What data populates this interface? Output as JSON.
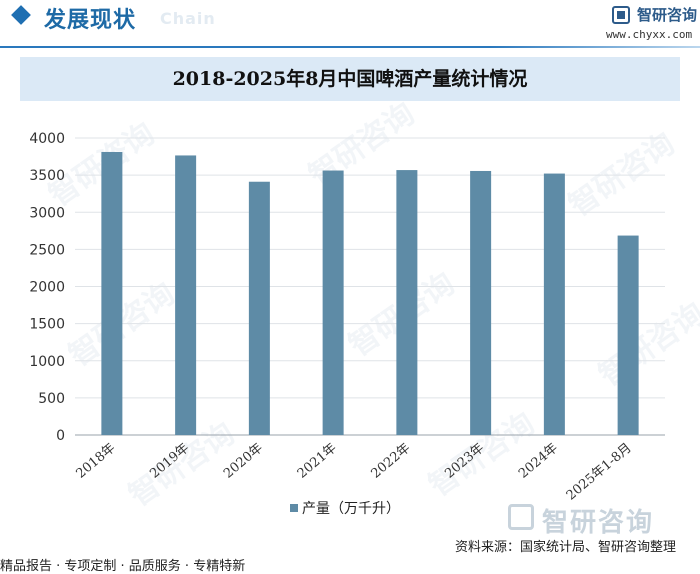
{
  "header": {
    "title": "发展现状",
    "subtitle": "Chain",
    "logo_name": "智研咨询",
    "logo_url": "www.chyxx.com"
  },
  "chart_data": {
    "type": "bar",
    "title": "2018-2025年8月中国啤酒产量统计情况",
    "categories": [
      "2018年",
      "2019年",
      "2020年",
      "2021年",
      "2022年",
      "2023年",
      "2024年",
      "2025年1-8月"
    ],
    "series": [
      {
        "name": "产量（万千升）",
        "values": [
          3812,
          3765,
          3411,
          3562,
          3568,
          3556,
          3521,
          2686
        ]
      }
    ],
    "ylim": [
      0,
      4000
    ],
    "yticks": [
      0,
      500,
      1000,
      1500,
      2000,
      2500,
      3000,
      3500,
      4000
    ],
    "xlabel": "",
    "ylabel": "",
    "grid": true,
    "legend": "bottom-center",
    "bar_color": "#5e8ba6"
  },
  "watermark": "智研咨询",
  "source": "资料来源：国家统计局、智研咨询整理",
  "footer": "精品报告 · 专项定制 · 品质服务 · 专精特新"
}
